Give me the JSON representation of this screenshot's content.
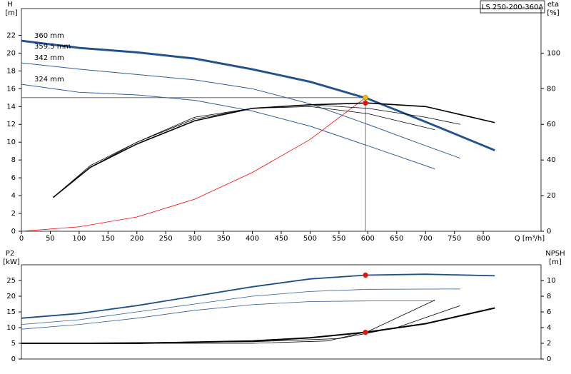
{
  "chart_data": [
    {
      "type": "line",
      "title": "LS 250-200-360A",
      "y_label": "H",
      "y_unit": "[m]",
      "y2_label": "eta",
      "y2_unit": "[%]",
      "x_label": "Q [m³/h]",
      "xlim": [
        0,
        900
      ],
      "xticks": [
        0,
        50,
        100,
        150,
        200,
        250,
        300,
        350,
        400,
        450,
        500,
        550,
        600,
        650,
        700,
        750,
        800
      ],
      "ylim": [
        0,
        25
      ],
      "yticks": [
        0,
        2,
        4,
        6,
        8,
        10,
        12,
        14,
        16,
        18,
        20,
        22
      ],
      "y2lim": [
        0,
        125
      ],
      "y2ticks": [
        0,
        20,
        40,
        60,
        80,
        100
      ],
      "series": [
        {
          "name": "360 mm",
          "color": "#1f4e8c",
          "width": 2.5,
          "x": [
            0,
            100,
            200,
            300,
            400,
            500,
            600,
            700,
            820
          ],
          "values": [
            21.4,
            20.6,
            20.1,
            19.4,
            18.2,
            16.8,
            14.9,
            12.3,
            9.1
          ]
        },
        {
          "name": "359.5 mm",
          "color": "#2e5f9a",
          "width": 1,
          "x": [
            0,
            100,
            200,
            300,
            400,
            500,
            600,
            700,
            820
          ],
          "values": [
            21.3,
            20.5,
            20.0,
            19.3,
            18.1,
            16.7,
            14.8,
            12.2,
            9.0
          ]
        },
        {
          "name": "342 mm",
          "color": "#2e5f9a",
          "width": 1,
          "x": [
            0,
            100,
            200,
            300,
            400,
            500,
            600,
            700,
            760
          ],
          "values": [
            18.9,
            18.2,
            17.6,
            17.0,
            16.0,
            14.3,
            12.0,
            9.6,
            8.2
          ]
        },
        {
          "name": "324 mm",
          "color": "#2e5f9a",
          "width": 1,
          "x": [
            0,
            100,
            200,
            300,
            400,
            500,
            600,
            716
          ],
          "values": [
            16.5,
            15.6,
            15.3,
            14.7,
            13.5,
            11.8,
            9.6,
            7.0
          ]
        },
        {
          "color": "#ff0000",
          "width": 0.8,
          "x": [
            0,
            100,
            200,
            300,
            400,
            500,
            596
          ],
          "values": [
            0,
            0.5,
            1.6,
            3.6,
            6.6,
            10.3,
            15.0
          ]
        },
        {
          "color": "#000000",
          "width": 1.6,
          "axis": "y2",
          "x": [
            55,
            120,
            200,
            300,
            400,
            500,
            600,
            700,
            820
          ],
          "values": [
            19,
            36,
            49,
            62,
            69,
            71,
            72,
            70,
            61
          ]
        },
        {
          "color": "#000000",
          "width": 0.8,
          "axis": "y2",
          "x": [
            55,
            120,
            200,
            300,
            400,
            500,
            600,
            700,
            760
          ],
          "values": [
            19,
            37,
            50,
            63,
            69,
            71,
            69,
            64,
            60
          ]
        },
        {
          "color": "#000000",
          "width": 0.8,
          "axis": "y2",
          "x": [
            55,
            120,
            200,
            300,
            400,
            500,
            600,
            716
          ],
          "values": [
            19,
            36,
            50,
            64,
            69,
            70,
            66,
            57
          ]
        }
      ],
      "markers": [
        {
          "x": 596,
          "y": 15.0,
          "color": "#f5b800",
          "guides": true
        },
        {
          "x": 596,
          "y": 72,
          "axis": "y2",
          "color": "#e81010"
        }
      ]
    },
    {
      "type": "line",
      "y_label": "P2",
      "y_unit": "[kW]",
      "y2_label": "NPSH",
      "y2_unit": "[m]",
      "xlim": [
        0,
        900
      ],
      "ylim": [
        0,
        30
      ],
      "yticks": [
        0,
        5,
        10,
        15,
        20,
        25
      ],
      "y2lim": [
        0,
        12
      ],
      "y2ticks": [
        0,
        2,
        4,
        6,
        8,
        10
      ],
      "series": [
        {
          "color": "#1f4e8c",
          "width": 1.8,
          "x": [
            0,
            100,
            200,
            300,
            400,
            500,
            596,
            700,
            820
          ],
          "values": [
            13,
            14.5,
            17,
            20,
            23,
            25.5,
            26.7,
            27,
            26.5
          ]
        },
        {
          "color": "#2e5f9a",
          "width": 0.8,
          "x": [
            0,
            100,
            200,
            300,
            400,
            500,
            600,
            760
          ],
          "values": [
            11,
            12.5,
            15,
            17.5,
            20,
            21.5,
            22.2,
            22.3
          ]
        },
        {
          "color": "#2e5f9a",
          "width": 0.8,
          "x": [
            0,
            100,
            200,
            300,
            400,
            500,
            600,
            716
          ],
          "values": [
            9.5,
            11,
            13,
            15.5,
            17.3,
            18.3,
            18.5,
            18.5
          ]
        },
        {
          "color": "#000000",
          "width": 2,
          "axis": "y2",
          "x": [
            0,
            200,
            400,
            500,
            596,
            700,
            820
          ],
          "values": [
            2.0,
            2.0,
            2.3,
            2.7,
            3.4,
            4.5,
            6.5
          ]
        },
        {
          "color": "#000000",
          "width": 0.8,
          "axis": "y2",
          "x": [
            0,
            400,
            550,
            650,
            760
          ],
          "values": [
            2.0,
            2.2,
            2.6,
            4.0,
            6.8
          ]
        },
        {
          "color": "#000000",
          "width": 0.8,
          "axis": "y2",
          "x": [
            0,
            400,
            530,
            600,
            716
          ],
          "values": [
            2.0,
            2.0,
            2.3,
            3.5,
            7.5
          ]
        }
      ],
      "markers": [
        {
          "x": 596,
          "y": 26.7,
          "color": "#e81010"
        },
        {
          "x": 596,
          "y": 3.4,
          "axis": "y2",
          "color": "#e81010"
        }
      ]
    }
  ]
}
